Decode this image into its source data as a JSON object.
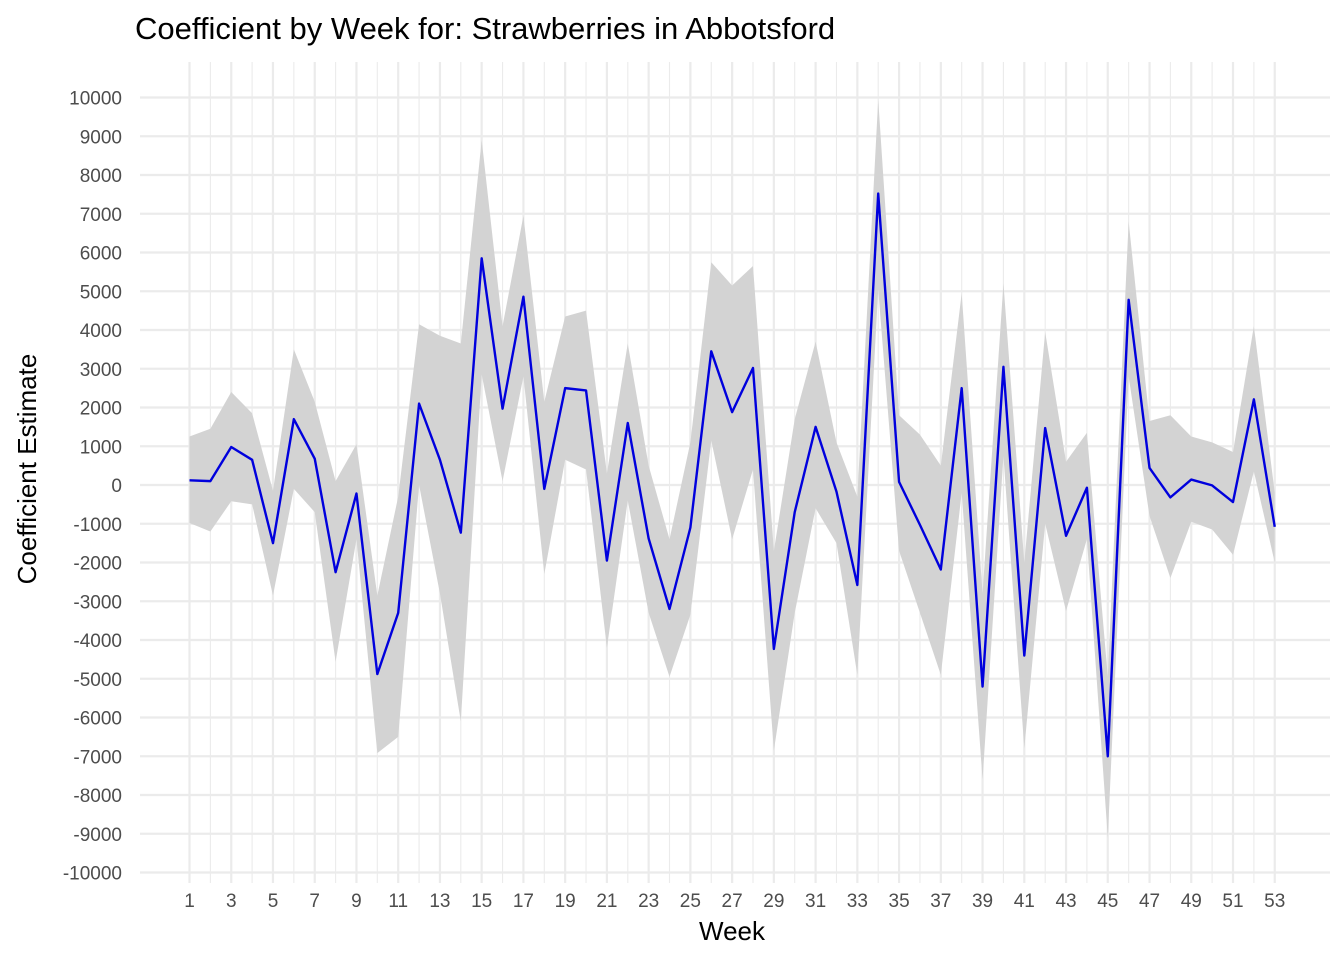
{
  "chart_data": {
    "type": "line",
    "title": "Coefficient by Week for: Strawberries in Abbotsford",
    "xlabel": "Week",
    "ylabel": "Coefficient Estimate",
    "xlim": [
      1,
      53
    ],
    "ylim": [
      -10000,
      10000
    ],
    "x_ticks": [
      1,
      3,
      5,
      7,
      9,
      11,
      13,
      15,
      17,
      19,
      21,
      23,
      25,
      27,
      29,
      31,
      33,
      35,
      37,
      39,
      41,
      43,
      45,
      47,
      49,
      51,
      53
    ],
    "y_ticks": [
      -10000,
      -9000,
      -8000,
      -7000,
      -6000,
      -5000,
      -4000,
      -3000,
      -2000,
      -1000,
      0,
      1000,
      2000,
      3000,
      4000,
      5000,
      6000,
      7000,
      8000,
      9000,
      10000
    ],
    "grid": true,
    "line_color": "#0000dd",
    "ribbon_color": "#d3d3d3",
    "series": [
      {
        "x": [
          1,
          2,
          3,
          4,
          5,
          6,
          7,
          8,
          9,
          10,
          11,
          12,
          13,
          14,
          15,
          16,
          17,
          18,
          19,
          20,
          21,
          22,
          23,
          24,
          25,
          26,
          27,
          28,
          29,
          30,
          31,
          32,
          33,
          34,
          35,
          36,
          37,
          38,
          39,
          40,
          41,
          42,
          43,
          44,
          45,
          46,
          47,
          48,
          49,
          50,
          51,
          52,
          53
        ],
        "values": [
          120,
          100,
          980,
          650,
          -1500,
          1700,
          680,
          -2250,
          -220,
          -4880,
          -3300,
          2100,
          650,
          -1230,
          5850,
          1970,
          4860,
          -100,
          2500,
          2440,
          -1950,
          1600,
          -1380,
          -3200,
          -1100,
          3450,
          1880,
          3020,
          -4230,
          -700,
          1500,
          -170,
          -2580,
          7520,
          80,
          -1030,
          -2180,
          2500,
          -5200,
          3050,
          -4400,
          1470,
          -1310,
          -70,
          -7000,
          4780,
          440,
          -320,
          140,
          -10,
          -440,
          2210,
          -1080
        ],
        "lower": [
          -980,
          -1200,
          -420,
          -500,
          -2850,
          -100,
          -700,
          -4560,
          -1400,
          -6920,
          -6500,
          0,
          -2800,
          -6100,
          2850,
          100,
          2800,
          -2300,
          650,
          400,
          -4200,
          -400,
          -3300,
          -4950,
          -3350,
          1150,
          -1400,
          400,
          -6850,
          -3300,
          -600,
          -1500,
          -4900,
          5050,
          -1700,
          -3300,
          -4900,
          -200,
          -7600,
          750,
          -6800,
          -1000,
          -3250,
          -1400,
          -9100,
          2800,
          -800,
          -2400,
          -950,
          -1150,
          -1800,
          350,
          -2000
        ],
        "upper": [
          1250,
          1450,
          2400,
          1850,
          -150,
          3500,
          2150,
          100,
          1050,
          -2850,
          -300,
          4150,
          3850,
          3650,
          8900,
          4100,
          6950,
          2150,
          4350,
          4500,
          300,
          3650,
          500,
          -1400,
          1100,
          5750,
          5150,
          5650,
          -1700,
          1700,
          3700,
          1100,
          -300,
          9950,
          1800,
          1300,
          500,
          4950,
          -2800,
          5200,
          -2000,
          3950,
          600,
          1350,
          -4950,
          6800,
          1650,
          1800,
          1250,
          1100,
          850,
          4100,
          -200
        ]
      }
    ]
  }
}
